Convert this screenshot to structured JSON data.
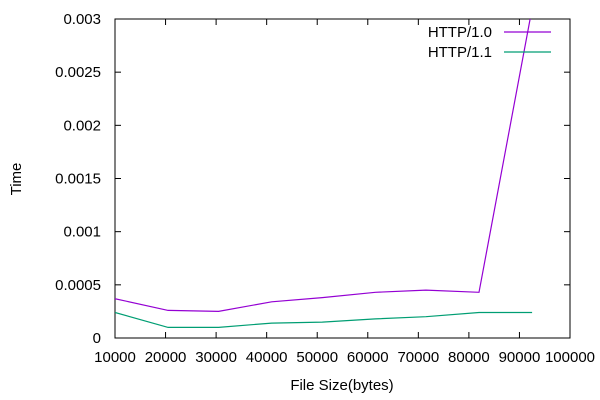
{
  "chart_data": {
    "type": "line",
    "title": "",
    "xlabel": "File Size(bytes)",
    "ylabel": "Time",
    "xlim": [
      10000,
      100000
    ],
    "ylim": [
      0,
      0.003
    ],
    "xticks": [
      10000,
      20000,
      30000,
      40000,
      50000,
      60000,
      70000,
      80000,
      90000,
      100000
    ],
    "yticks": [
      0,
      0.0005,
      0.001,
      0.0015,
      0.002,
      0.0025,
      0.003
    ],
    "xtick_labels": [
      "10000",
      "20000",
      "30000",
      "40000",
      "50000",
      "60000",
      "70000",
      "80000",
      "90000",
      "100000"
    ],
    "ytick_labels": [
      "0",
      "0.0005",
      "0.001",
      "0.0015",
      "0.002",
      "0.0025",
      "0.003"
    ],
    "grid": false,
    "legend_position": "top-right",
    "series": [
      {
        "name": "HTTP/1.0",
        "color": "#9400d3",
        "x": [
          10000,
          20500,
          30500,
          41000,
          51000,
          61500,
          71500,
          82000,
          92500
        ],
        "y": [
          0.00037,
          0.00026,
          0.00025,
          0.00034,
          0.00038,
          0.00043,
          0.00045,
          0.00043,
          0.0031
        ]
      },
      {
        "name": "HTTP/1.1",
        "color": "#009e73",
        "x": [
          10000,
          20500,
          30500,
          41000,
          51000,
          61500,
          71500,
          82000,
          92500
        ],
        "y": [
          0.00024,
          0.0001,
          0.0001,
          0.00014,
          0.00015,
          0.00018,
          0.0002,
          0.00024,
          0.00024
        ]
      }
    ]
  }
}
